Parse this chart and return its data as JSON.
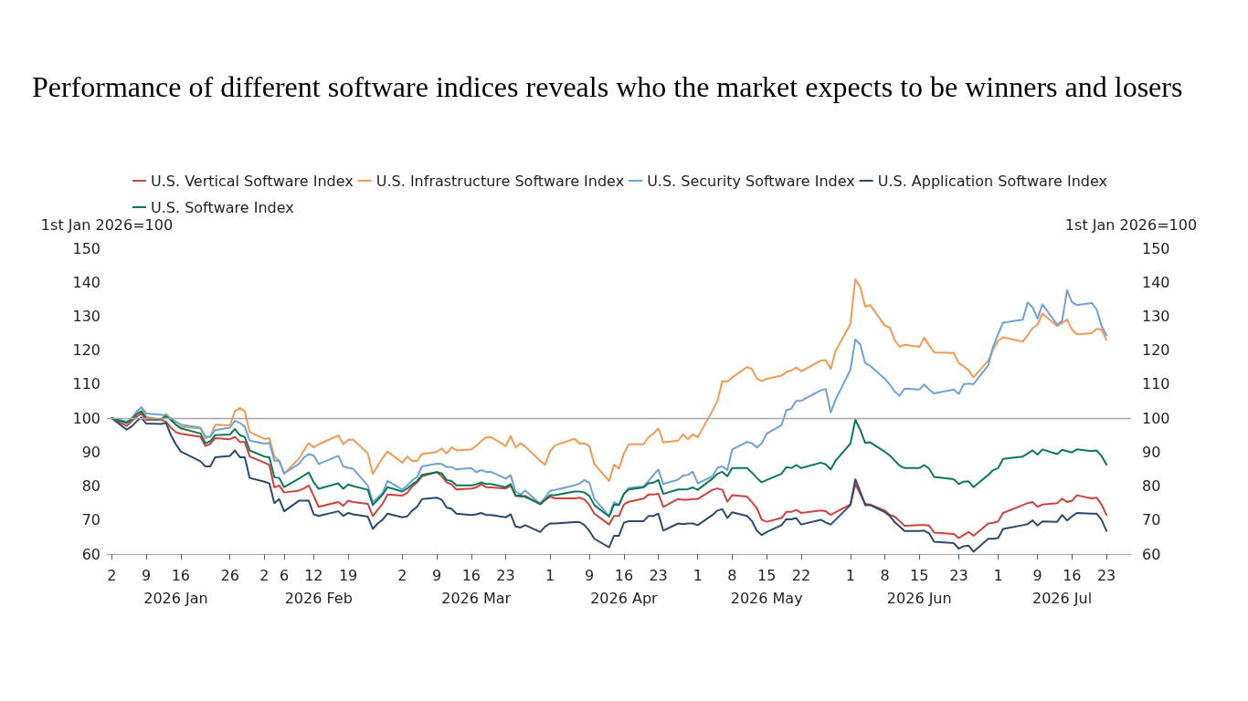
{
  "chart_data": {
    "type": "line",
    "title": "Performance of different software indices reveals who the market expects to be winners and losers",
    "ylabel": "1st Jan 2026=100",
    "y2label": "1st Jan 2026=100",
    "x": [
      "2026-01-02",
      "2026-01-05",
      "2026-01-06",
      "2026-01-07",
      "2026-01-08",
      "2026-01-09",
      "2026-01-12",
      "2026-01-13",
      "2026-01-14",
      "2026-01-15",
      "2026-01-16",
      "2026-01-20",
      "2026-01-21",
      "2026-01-22",
      "2026-01-23",
      "2026-01-26",
      "2026-01-27",
      "2026-01-28",
      "2026-01-29",
      "2026-01-30",
      "2026-02-02",
      "2026-02-03",
      "2026-02-04",
      "2026-02-05",
      "2026-02-06",
      "2026-02-09",
      "2026-02-10",
      "2026-02-11",
      "2026-02-12",
      "2026-02-13",
      "2026-02-17",
      "2026-02-18",
      "2026-02-19",
      "2026-02-20",
      "2026-02-23",
      "2026-02-24",
      "2026-02-25",
      "2026-02-26",
      "2026-02-27",
      "2026-03-02",
      "2026-03-03",
      "2026-03-04",
      "2026-03-05",
      "2026-03-06",
      "2026-03-09",
      "2026-03-10",
      "2026-03-11",
      "2026-03-12",
      "2026-03-13",
      "2026-03-16",
      "2026-03-17",
      "2026-03-18",
      "2026-03-19",
      "2026-03-20",
      "2026-03-23",
      "2026-03-24",
      "2026-03-25",
      "2026-03-26",
      "2026-03-27",
      "2026-03-30",
      "2026-03-31",
      "2026-04-01",
      "2026-04-02",
      "2026-04-06",
      "2026-04-07",
      "2026-04-08",
      "2026-04-09",
      "2026-04-10",
      "2026-04-13",
      "2026-04-14",
      "2026-04-15",
      "2026-04-16",
      "2026-04-17",
      "2026-04-20",
      "2026-04-21",
      "2026-04-22",
      "2026-04-23",
      "2026-04-24",
      "2026-04-27",
      "2026-04-28",
      "2026-04-29",
      "2026-04-30",
      "2026-05-01",
      "2026-05-04",
      "2026-05-05",
      "2026-05-06",
      "2026-05-07",
      "2026-05-08",
      "2026-05-11",
      "2026-05-12",
      "2026-05-13",
      "2026-05-14",
      "2026-05-15",
      "2026-05-18",
      "2026-05-19",
      "2026-05-20",
      "2026-05-21",
      "2026-05-22",
      "2026-05-26",
      "2026-05-27",
      "2026-05-28",
      "2026-05-29",
      "2026-06-01",
      "2026-06-02",
      "2026-06-03",
      "2026-06-04",
      "2026-06-05",
      "2026-06-08",
      "2026-06-09",
      "2026-06-10",
      "2026-06-11",
      "2026-06-12",
      "2026-06-15",
      "2026-06-16",
      "2026-06-17",
      "2026-06-18",
      "2026-06-22",
      "2026-06-23",
      "2026-06-24",
      "2026-06-25",
      "2026-06-26",
      "2026-06-29",
      "2026-06-30",
      "2026-07-01",
      "2026-07-02",
      "2026-07-06",
      "2026-07-07",
      "2026-07-08",
      "2026-07-09",
      "2026-07-10",
      "2026-07-13",
      "2026-07-14",
      "2026-07-15",
      "2026-07-16",
      "2026-07-17",
      "2026-07-20",
      "2026-07-21",
      "2026-07-22",
      "2026-07-23"
    ],
    "series": [
      {
        "name": "U.S. Vertical Software Index",
        "color": "#d1403c",
        "values": [
          100,
          97.7,
          99,
          100.4,
          101.3,
          99.5,
          99.5,
          99,
          97.2,
          95.9,
          95.4,
          94.5,
          91.8,
          92.5,
          94.1,
          93.8,
          94.5,
          93,
          93,
          88.7,
          86.9,
          86.2,
          79.6,
          80.2,
          78.1,
          78.7,
          79.3,
          80.2,
          77.1,
          73.9,
          75.3,
          74.2,
          75.7,
          75.3,
          74.8,
          71.2,
          73,
          74.8,
          77.5,
          77.2,
          78,
          79.9,
          81.1,
          82.9,
          84.1,
          82.9,
          81.1,
          80.5,
          79,
          79.3,
          79.6,
          80.5,
          79.7,
          79.6,
          79.3,
          80.2,
          77.1,
          76.9,
          77.1,
          74.6,
          75.9,
          76.9,
          76.4,
          76.4,
          76.6,
          76,
          74.4,
          71.9,
          68.7,
          71.2,
          71.2,
          74.6,
          75.4,
          76.3,
          77.5,
          77.5,
          77.8,
          73.9,
          76.2,
          76,
          76,
          76.2,
          76.2,
          78.9,
          79.3,
          78.9,
          75.4,
          77.3,
          76.9,
          75.3,
          73.5,
          70.1,
          69.5,
          70.6,
          72.4,
          72.4,
          73,
          72.1,
          72.8,
          72.6,
          71.5,
          72.3,
          74.6,
          80.6,
          77.7,
          74.8,
          74.6,
          72.8,
          71.5,
          71,
          69.7,
          68.3,
          68.5,
          68.5,
          68.4,
          66.3,
          65.9,
          64.7,
          65.6,
          66.5,
          65.4,
          69,
          69.2,
          69.6,
          72.1,
          74.4,
          75,
          75.3,
          73.9,
          74.6,
          75,
          76.3,
          75.3,
          75.7,
          77.3,
          76.4,
          76.6,
          74.6,
          71.5
        ]
      },
      {
        "name": "U.S. Infrastructure Software Index",
        "color": "#f19a52",
        "values": [
          100,
          98.6,
          99.7,
          102,
          103.2,
          100.4,
          99.5,
          101.3,
          99.7,
          98.1,
          97.4,
          97,
          94.1,
          94.5,
          98.1,
          97.9,
          102,
          103,
          102,
          95.9,
          93.9,
          94.1,
          88.7,
          87.5,
          83.6,
          88.1,
          90.5,
          92.6,
          91.4,
          92.3,
          94.9,
          92.3,
          93.6,
          93.7,
          89.6,
          83.6,
          86,
          88.3,
          90.2,
          86.9,
          88.7,
          87.4,
          87.4,
          89.4,
          90.1,
          91.1,
          89.6,
          91.4,
          90.5,
          90.8,
          91.8,
          93.2,
          94.4,
          94.4,
          91.8,
          94.7,
          91.4,
          92.6,
          91.6,
          87.4,
          86.3,
          90.2,
          92,
          93.9,
          92.5,
          92.6,
          91.7,
          86.5,
          81.5,
          86.3,
          85.1,
          89.6,
          92.3,
          92.3,
          94.4,
          95.4,
          97,
          92.9,
          93.4,
          95.2,
          93.8,
          95.2,
          94.4,
          102.2,
          105.1,
          110.9,
          110.8,
          112,
          115,
          114.5,
          111.7,
          110.9,
          111.6,
          112.5,
          113.6,
          114,
          114.9,
          113.8,
          116.9,
          117.1,
          114.5,
          119.8,
          127.7,
          140.9,
          138.6,
          132.8,
          133.3,
          127.2,
          126.7,
          122.9,
          121,
          121.6,
          121,
          123.7,
          121.4,
          119.4,
          119.2,
          116.2,
          115.3,
          114.1,
          112,
          116.9,
          120.3,
          122.8,
          123.8,
          122.5,
          124.4,
          126.5,
          127.5,
          130.8,
          127.1,
          128,
          129,
          126.1,
          124.7,
          125,
          126.3,
          126.1,
          123
        ]
      },
      {
        "name": "U.S. Security Software Index",
        "color": "#6fa1db",
        "values": [
          100,
          99,
          99.9,
          101.7,
          103.2,
          101.4,
          101,
          100.8,
          99.9,
          99,
          98.1,
          97.2,
          94.5,
          94.5,
          96.5,
          97.2,
          99.2,
          98.6,
          97.5,
          93.4,
          92.5,
          92.7,
          87.5,
          87.4,
          83.8,
          86.5,
          88.4,
          89.4,
          89,
          86.5,
          88.9,
          85.8,
          85.4,
          85.1,
          80.2,
          75.3,
          76.6,
          78,
          81.5,
          79,
          80.2,
          81.7,
          82.7,
          85.8,
          86.6,
          86.5,
          85.6,
          85.6,
          84.9,
          85.3,
          84.1,
          84.7,
          84.2,
          84.2,
          82.2,
          83.2,
          78.4,
          77.5,
          78.7,
          74.8,
          76.6,
          78.6,
          78.9,
          80.2,
          80.8,
          81.8,
          80.9,
          76.2,
          71.2,
          75.3,
          74.6,
          77.7,
          79.5,
          79.9,
          81.5,
          83.3,
          84.9,
          80.6,
          81.9,
          83.1,
          83.3,
          84.2,
          80.8,
          82.9,
          85.4,
          85.8,
          84.7,
          90.8,
          93,
          92.6,
          91.4,
          92.6,
          95.4,
          97.9,
          102.3,
          102.8,
          105.1,
          105.1,
          108.2,
          108.6,
          101.7,
          105.5,
          114.2,
          123.2,
          121.7,
          116.2,
          115.4,
          111.6,
          109.9,
          107.8,
          106.6,
          108.7,
          108.4,
          109.9,
          108.4,
          107.3,
          108.4,
          107.1,
          110,
          110.2,
          110,
          115.6,
          121.1,
          124.7,
          128.1,
          129,
          134.1,
          132.6,
          129.3,
          133.5,
          127.5,
          128.6,
          137.7,
          134.1,
          133.3,
          133.9,
          132,
          127.2,
          124.4
        ]
      },
      {
        "name": "U.S. Application Software Index",
        "color": "#2a4a70",
        "values": [
          100,
          96.6,
          97.5,
          99,
          100.2,
          98.4,
          98.3,
          98.6,
          95,
          92.3,
          90.2,
          87.3,
          85.8,
          85.8,
          88.5,
          88.9,
          90.5,
          88.5,
          88.5,
          82.4,
          81.3,
          80.8,
          75,
          76.2,
          72.6,
          75.7,
          75.7,
          75.7,
          71.7,
          71.2,
          72.6,
          71.2,
          72.1,
          71.7,
          71,
          67.4,
          69,
          70.1,
          71.9,
          70.8,
          71.1,
          72.8,
          73.9,
          76.2,
          76.6,
          76,
          73.7,
          73.3,
          71.9,
          71.5,
          71.7,
          72.1,
          71.5,
          71.5,
          70.8,
          71.7,
          68.1,
          67.8,
          68.5,
          66.5,
          68.1,
          69,
          69,
          69.4,
          69.4,
          68.5,
          66.8,
          64.5,
          62,
          65.4,
          65.4,
          69.2,
          69.7,
          69.7,
          71.2,
          71.2,
          71.9,
          66.9,
          69,
          68.8,
          69,
          69,
          68.5,
          71.5,
          72.8,
          73.2,
          70.6,
          72.3,
          71.2,
          69.7,
          66.9,
          65.6,
          66.5,
          68.5,
          70.3,
          70.2,
          70.6,
          68.7,
          70.1,
          69.3,
          68.7,
          70.1,
          74.4,
          82,
          78.4,
          74.4,
          74.4,
          72.3,
          71.2,
          69.4,
          68.1,
          66.8,
          66.8,
          66.9,
          66.1,
          63.6,
          63.2,
          61.6,
          62.3,
          62.5,
          60.7,
          64.5,
          64.5,
          64.7,
          67.4,
          68.5,
          68.8,
          69.9,
          68.4,
          69.6,
          69.5,
          71.5,
          69.9,
          71.1,
          72.1,
          71.9,
          71.9,
          70.1,
          66.8
        ]
      },
      {
        "name": "U.S. Software Index",
        "color": "#0a7a55",
        "values": [
          100,
          98.6,
          99.6,
          101.1,
          102,
          99.9,
          99.7,
          100.5,
          99.5,
          98.1,
          97,
          95.5,
          92.6,
          93.2,
          95,
          95.2,
          96.8,
          95,
          94.5,
          90.5,
          88.7,
          88.5,
          82.6,
          82.4,
          79.7,
          82.2,
          83.1,
          84,
          81.1,
          79.2,
          80.8,
          79.2,
          80.5,
          80,
          78.9,
          74.4,
          76,
          77.5,
          79.7,
          78.4,
          79.3,
          80.5,
          81.5,
          83.3,
          84.1,
          83.8,
          81.8,
          81.5,
          80.2,
          80.2,
          80.5,
          81.1,
          80.6,
          80.6,
          79.7,
          80.6,
          77.2,
          77.2,
          76.8,
          74.8,
          76,
          77.3,
          77.3,
          78.4,
          78.4,
          78.1,
          77.1,
          74.4,
          71,
          74.6,
          74.4,
          77.7,
          79,
          79.6,
          80.8,
          81,
          81.8,
          77.7,
          79,
          79,
          79.1,
          79.6,
          78.9,
          82.2,
          83.6,
          84.2,
          82.9,
          85.3,
          85.3,
          84,
          82.4,
          81.1,
          81.8,
          83.6,
          85.6,
          85.3,
          86.2,
          85.3,
          86.9,
          86.4,
          84.9,
          87.5,
          92.5,
          99.5,
          96.6,
          92.7,
          92.9,
          90.1,
          89,
          87.5,
          86,
          85.3,
          85.3,
          86.2,
          85.1,
          82.7,
          82,
          80.6,
          81.3,
          81.4,
          79.7,
          83.3,
          84.7,
          85.3,
          88,
          88.7,
          89.6,
          90.5,
          89.3,
          90.8,
          89.4,
          90.7,
          90.3,
          89.9,
          90.8,
          90.3,
          90.5,
          88.9,
          86.3
        ]
      }
    ],
    "xlim": [
      "2026-01-01",
      "2026-07-28"
    ],
    "xticks": [
      {
        "value": "2026-01-02",
        "label": "2"
      },
      {
        "value": "2026-01-09",
        "label": "9"
      },
      {
        "value": "2026-01-16",
        "label": "16"
      },
      {
        "value": "2026-01-26",
        "label": "26"
      },
      {
        "value": "2026-02-02",
        "label": "2"
      },
      {
        "value": "2026-02-06",
        "label": "6"
      },
      {
        "value": "2026-02-12",
        "label": "12"
      },
      {
        "value": "2026-02-19",
        "label": "19"
      },
      {
        "value": "2026-03-02",
        "label": "2"
      },
      {
        "value": "2026-03-09",
        "label": "9"
      },
      {
        "value": "2026-03-16",
        "label": "16"
      },
      {
        "value": "2026-03-23",
        "label": "23"
      },
      {
        "value": "2026-04-01",
        "label": "1"
      },
      {
        "value": "2026-04-09",
        "label": "9"
      },
      {
        "value": "2026-04-16",
        "label": "16"
      },
      {
        "value": "2026-04-23",
        "label": "23"
      },
      {
        "value": "2026-05-01",
        "label": "1"
      },
      {
        "value": "2026-05-08",
        "label": "8"
      },
      {
        "value": "2026-05-15",
        "label": "15"
      },
      {
        "value": "2026-05-22",
        "label": "22"
      },
      {
        "value": "2026-06-01",
        "label": "1"
      },
      {
        "value": "2026-06-08",
        "label": "8"
      },
      {
        "value": "2026-06-15",
        "label": "15"
      },
      {
        "value": "2026-06-23",
        "label": "23"
      },
      {
        "value": "2026-07-01",
        "label": "1"
      },
      {
        "value": "2026-07-09",
        "label": "9"
      },
      {
        "value": "2026-07-16",
        "label": "16"
      },
      {
        "value": "2026-07-23",
        "label": "23"
      }
    ],
    "x2lim": [
      "2026-01-01",
      "2026-07-28"
    ],
    "x2ticks": [
      {
        "value": "2026-01-15",
        "label": "2026 Jan"
      },
      {
        "value": "2026-02-13",
        "label": "2026 Feb"
      },
      {
        "value": "2026-03-17",
        "label": "2026 Mar"
      },
      {
        "value": "2026-04-16",
        "label": "2026 Apr"
      },
      {
        "value": "2026-05-15",
        "label": "2026 May"
      },
      {
        "value": "2026-06-15",
        "label": "2026 Jun"
      },
      {
        "value": "2026-07-14",
        "label": "2026 Jul"
      }
    ],
    "ylim": [
      60,
      150
    ],
    "yticks": [
      60,
      70,
      80,
      90,
      100,
      110,
      120,
      130,
      140,
      150
    ],
    "y2lim": [
      60,
      150
    ],
    "y2ticks": [
      60,
      70,
      80,
      90,
      100,
      110,
      120,
      130,
      140,
      150
    ],
    "ref_lines": [
      {
        "axis": "y",
        "value": 100,
        "color": "#a6a6a6"
      }
    ],
    "legend": "top",
    "grid": false
  }
}
